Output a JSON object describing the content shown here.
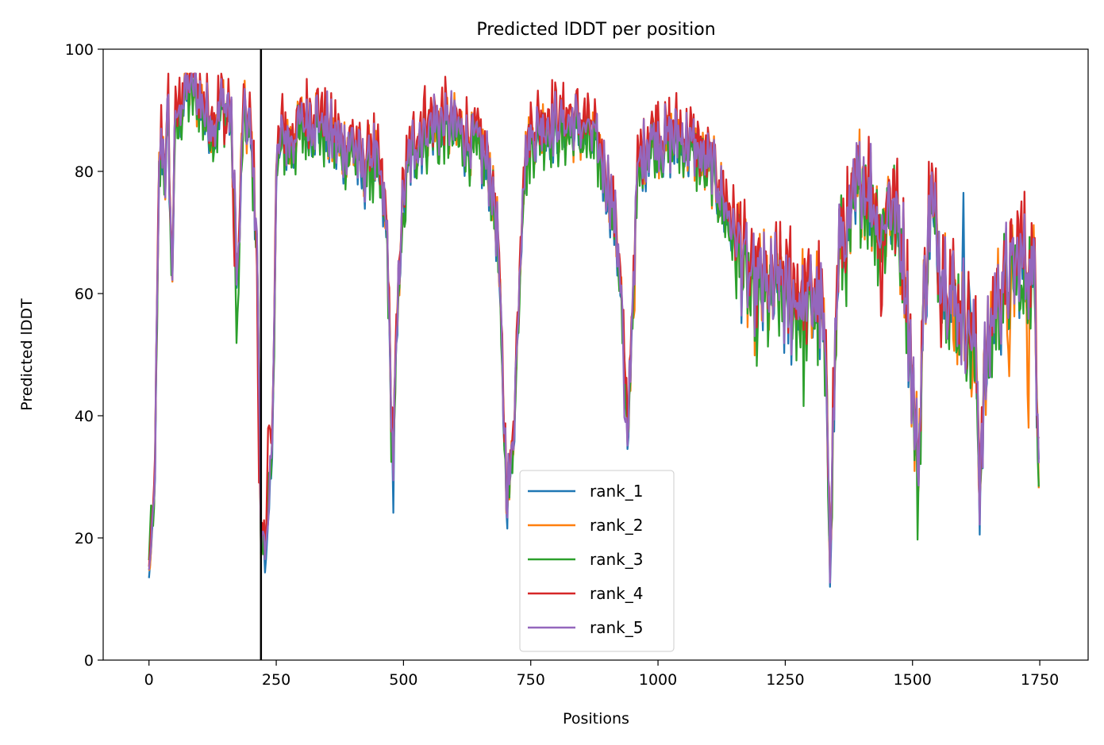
{
  "chart_data": {
    "type": "line",
    "title": "Predicted lDDT per position",
    "xlabel": "Positions",
    "ylabel": "Predicted lDDT",
    "xlim": [
      -90,
      1845
    ],
    "ylim": [
      0,
      100
    ],
    "xticks": [
      0,
      250,
      500,
      750,
      1000,
      1250,
      1500,
      1750
    ],
    "yticks": [
      0,
      20,
      40,
      60,
      80,
      100
    ],
    "grid": false,
    "legend_position": "lower center",
    "vline_x": 220,
    "series": [
      {
        "name": "rank_1",
        "color": "#1f77b4",
        "base_offset": -1.0,
        "extra_dips": [
          [
            480,
            -4
          ],
          [
            1337,
            -3
          ],
          [
            1508,
            -3
          ],
          [
            1197,
            -2
          ],
          [
            1185,
            -1
          ]
        ],
        "extra_peaks": [
          [
            1600,
            12
          ],
          [
            1612,
            9
          ],
          [
            225,
            -2
          ],
          [
            232,
            -3
          ],
          [
            240,
            -3
          ]
        ]
      },
      {
        "name": "rank_2",
        "color": "#ff7f0e",
        "base_offset": -0.5,
        "extra_dips": [
          [
            485,
            3
          ],
          [
            953,
            -6
          ],
          [
            1580,
            -10
          ],
          [
            1618,
            -8
          ],
          [
            1690,
            -14
          ],
          [
            1727,
            -20
          ]
        ],
        "extra_peaks": [
          [
            180,
            3
          ],
          [
            70,
            1
          ]
        ]
      },
      {
        "name": "rank_3",
        "color": "#2ca02c",
        "base_offset": -1.5,
        "extra_dips": [
          [
            172,
            -12
          ],
          [
            440,
            -4
          ],
          [
            500,
            -5
          ],
          [
            570,
            -4
          ],
          [
            1195,
            -6
          ],
          [
            1287,
            -7
          ],
          [
            1510,
            -4
          ],
          [
            1715,
            -10
          ]
        ],
        "extra_peaks": [
          [
            3,
            9
          ],
          [
            233,
            7
          ]
        ]
      },
      {
        "name": "rank_4",
        "color": "#d62728",
        "base_offset": 1.5,
        "extra_dips": [
          [
            150,
            -8
          ],
          [
            168,
            -14
          ],
          [
            215,
            -20
          ],
          [
            1440,
            -15
          ],
          [
            1555,
            -8
          ],
          [
            1684,
            -10
          ]
        ],
        "extra_peaks": [
          [
            235,
            12
          ],
          [
            1000,
            3
          ],
          [
            1260,
            4
          ],
          [
            1710,
            4
          ],
          [
            1740,
            3
          ],
          [
            543,
            2
          ],
          [
            830,
            1
          ]
        ]
      },
      {
        "name": "rank_5",
        "color": "#9467bd",
        "base_offset": 0.0,
        "extra_dips": [
          [
            935,
            -10
          ]
        ],
        "extra_peaks": [
          [
            233,
            -3
          ]
        ]
      }
    ]
  }
}
